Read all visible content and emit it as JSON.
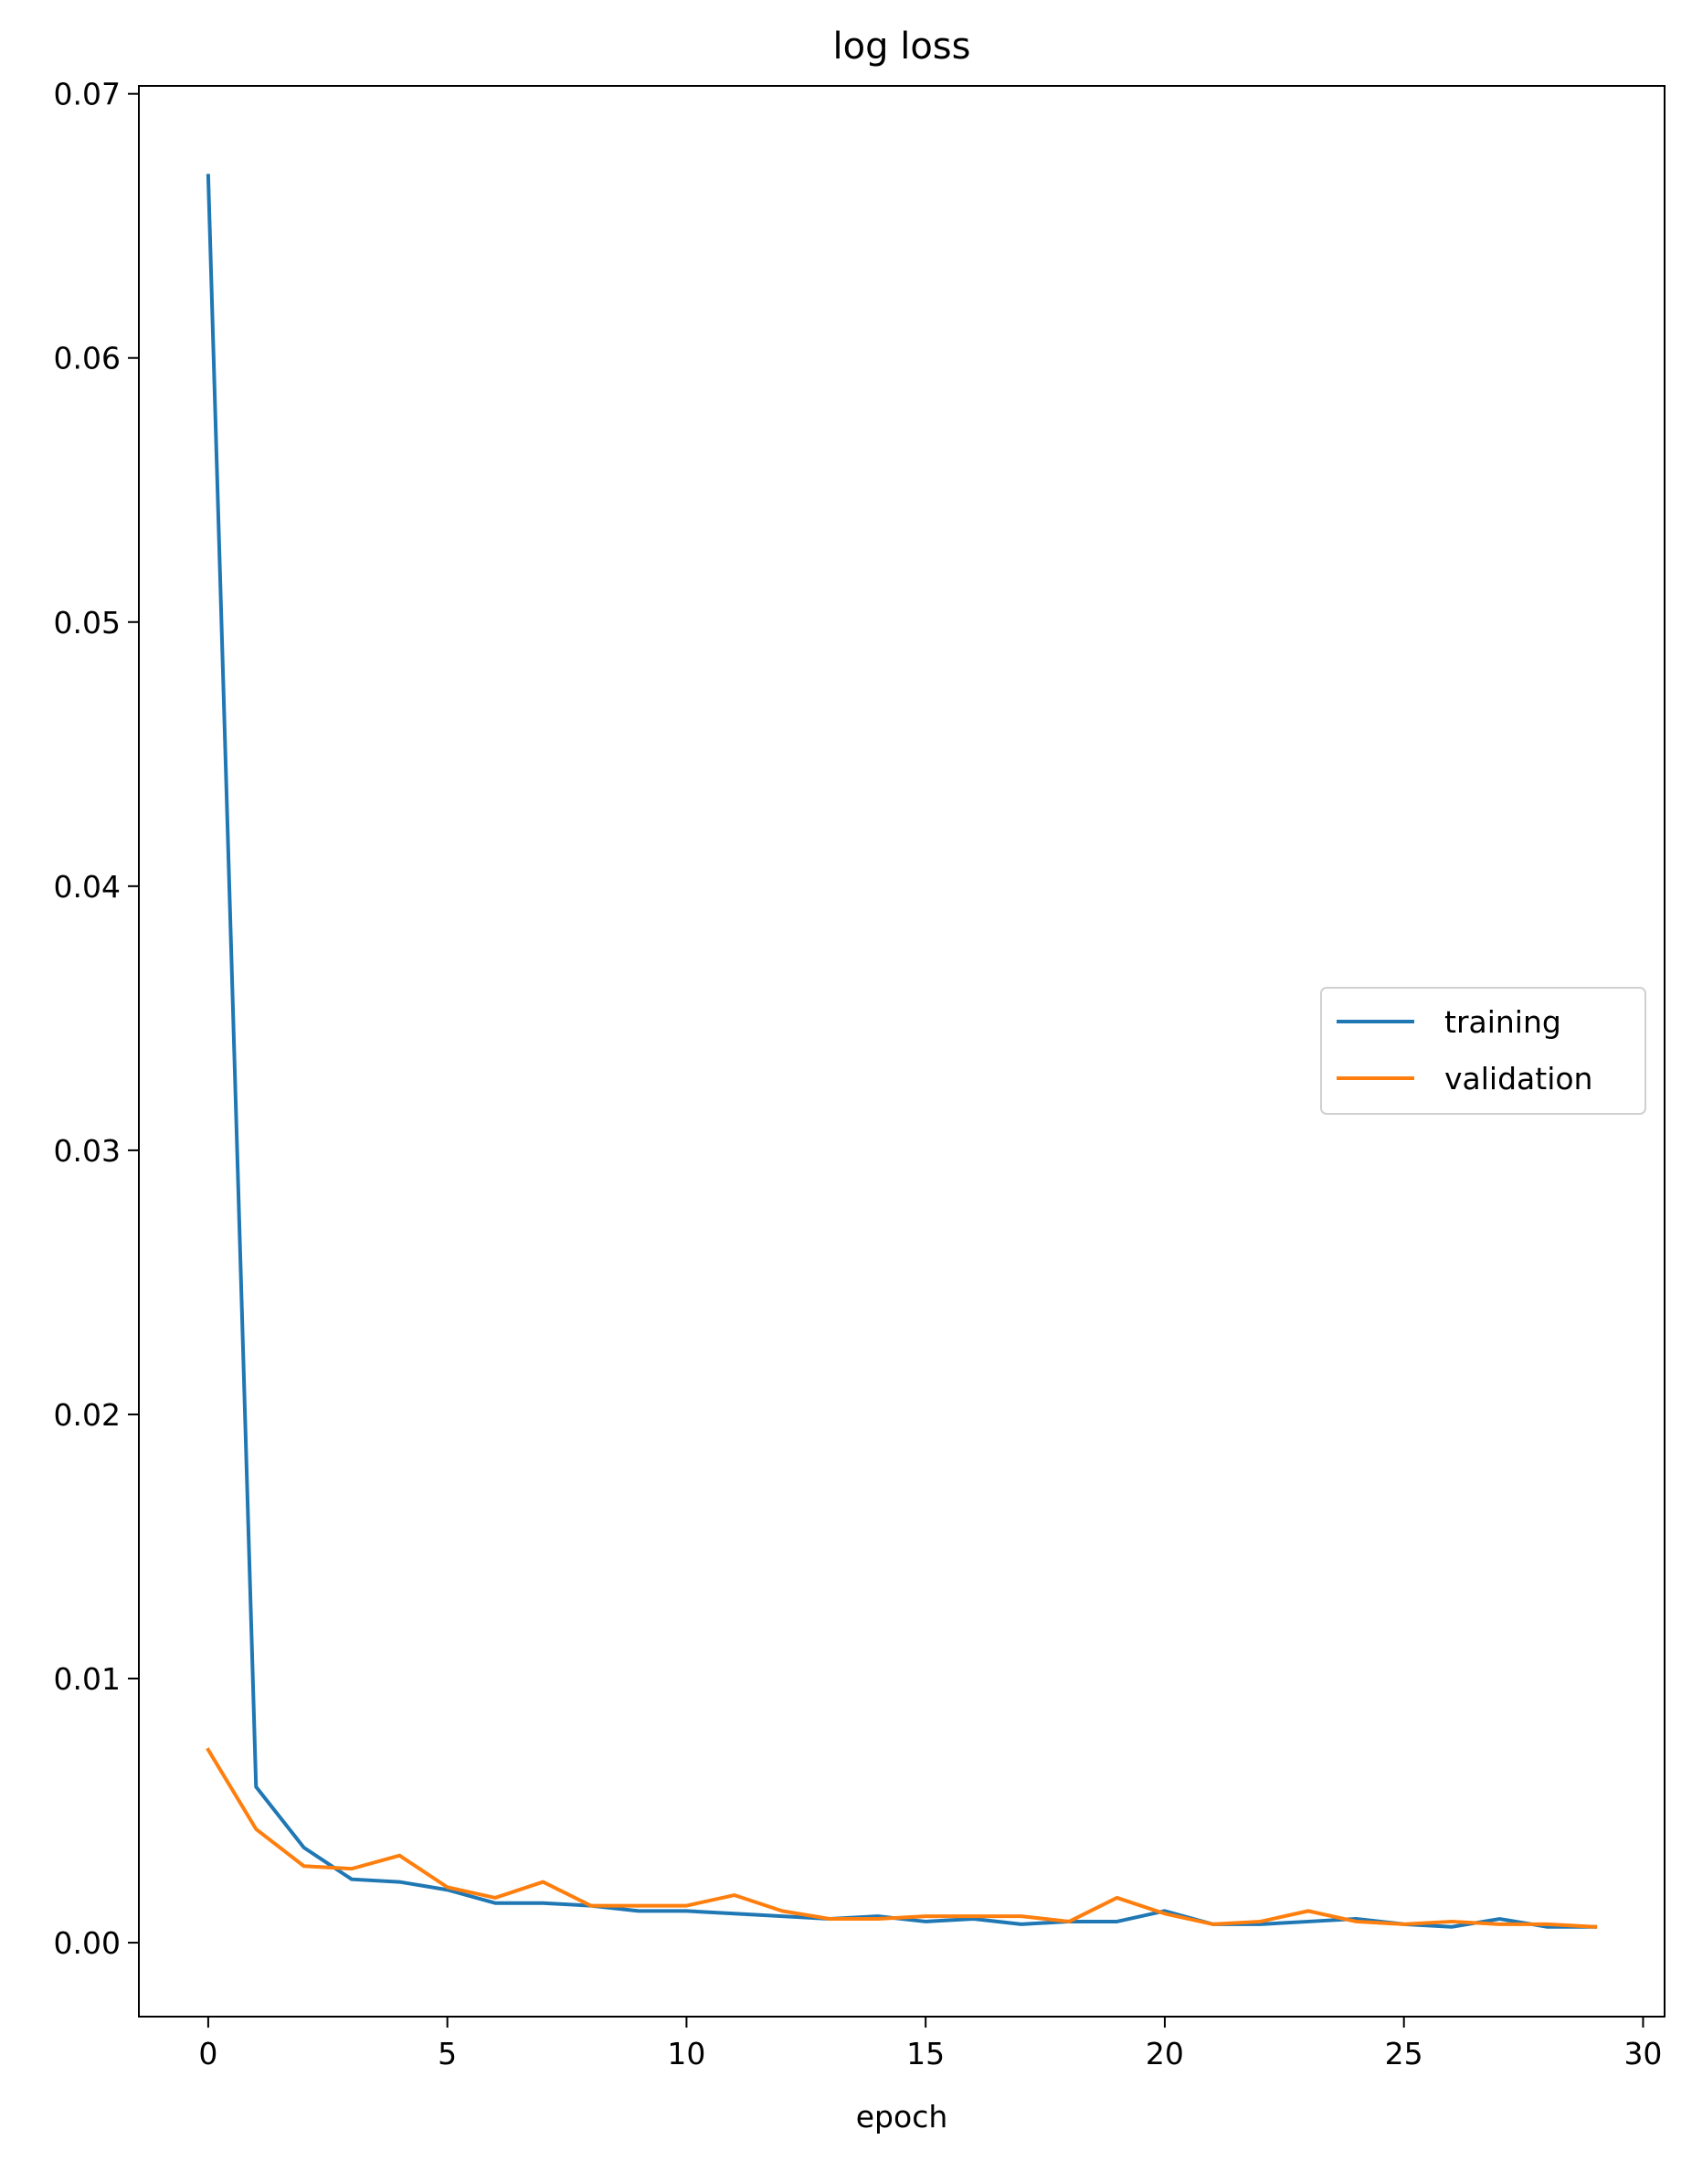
{
  "chart_data": {
    "type": "line",
    "title": "log loss",
    "xlabel": "epoch",
    "ylabel": "",
    "xlim": [
      -1.45,
      30.45
    ],
    "ylim": [
      -0.0028,
      0.0703
    ],
    "xticks": [
      0,
      5,
      10,
      15,
      20,
      25,
      30
    ],
    "xtick_labels": [
      "0",
      "5",
      "10",
      "15",
      "20",
      "25",
      "30"
    ],
    "yticks": [
      0.0,
      0.01,
      0.02,
      0.03,
      0.04,
      0.05,
      0.06,
      0.07
    ],
    "ytick_labels": [
      "0.00",
      "0.01",
      "0.02",
      "0.03",
      "0.04",
      "0.05",
      "0.06",
      "0.07"
    ],
    "grid": false,
    "legend_position": "center-right",
    "x": [
      0,
      1,
      2,
      3,
      4,
      5,
      6,
      7,
      8,
      9,
      10,
      11,
      12,
      13,
      14,
      15,
      16,
      17,
      18,
      19,
      20,
      21,
      22,
      23,
      24,
      25,
      26,
      27,
      28,
      29
    ],
    "series": [
      {
        "name": "training",
        "color": "#1f77b4",
        "values": [
          0.0669,
          0.0059,
          0.0036,
          0.0024,
          0.0023,
          0.002,
          0.0015,
          0.0015,
          0.0014,
          0.0012,
          0.0012,
          0.0011,
          0.001,
          0.0009,
          0.001,
          0.0008,
          0.0009,
          0.0007,
          0.0008,
          0.0008,
          0.0012,
          0.0007,
          0.0007,
          0.0008,
          0.0009,
          0.0007,
          0.0006,
          0.0009,
          0.0006,
          0.0006
        ]
      },
      {
        "name": "validation",
        "color": "#ff7f0e",
        "values": [
          0.0073,
          0.0043,
          0.0029,
          0.0028,
          0.0033,
          0.0021,
          0.0017,
          0.0023,
          0.0014,
          0.0014,
          0.0014,
          0.0018,
          0.0012,
          0.0009,
          0.0009,
          0.001,
          0.001,
          0.001,
          0.0008,
          0.0017,
          0.0011,
          0.0007,
          0.0008,
          0.0012,
          0.0008,
          0.0007,
          0.0008,
          0.0007,
          0.0007,
          0.0006
        ]
      }
    ]
  }
}
